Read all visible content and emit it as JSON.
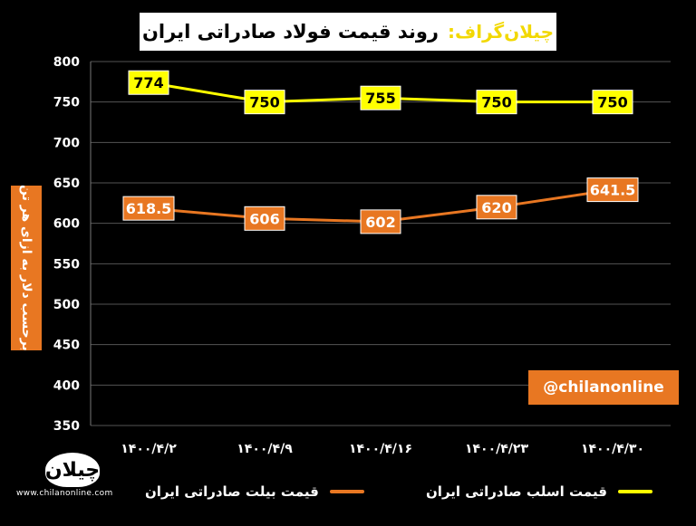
{
  "header": {
    "brand": "چیلان‌گراف:",
    "title": "روند قیمت فولاد صادراتی ایران"
  },
  "watermark": {
    "handle": "@chilanonline",
    "url": "www.chilanonline.com",
    "logo_text": "چیلان"
  },
  "chart_data": {
    "type": "line",
    "categories": [
      "۱۴۰۰/۴/۲",
      "۱۴۰۰/۴/۹",
      "۱۴۰۰/۴/۱۶",
      "۱۴۰۰/۴/۲۳",
      "۱۴۰۰/۴/۳۰"
    ],
    "ylabel": "برحسب دلار به ازای هر تن",
    "ylim": [
      350,
      800
    ],
    "yticks": [
      350,
      400,
      450,
      500,
      550,
      600,
      650,
      700,
      750,
      800
    ],
    "grid": true,
    "legend_position": "bottom",
    "series": [
      {
        "name": "قیمت اسلب صادراتی ایران",
        "color": "#ffff00",
        "values": [
          774,
          750,
          755,
          750,
          750
        ],
        "labels": [
          "774",
          "750",
          "755",
          "750",
          "750"
        ]
      },
      {
        "name": "قیمت بیلت صادراتی ایران",
        "color": "#e87722",
        "values": [
          618.5,
          606,
          602,
          620,
          641.5
        ],
        "labels": [
          "618.5",
          "606",
          "602",
          "620",
          "641.5"
        ]
      }
    ]
  }
}
